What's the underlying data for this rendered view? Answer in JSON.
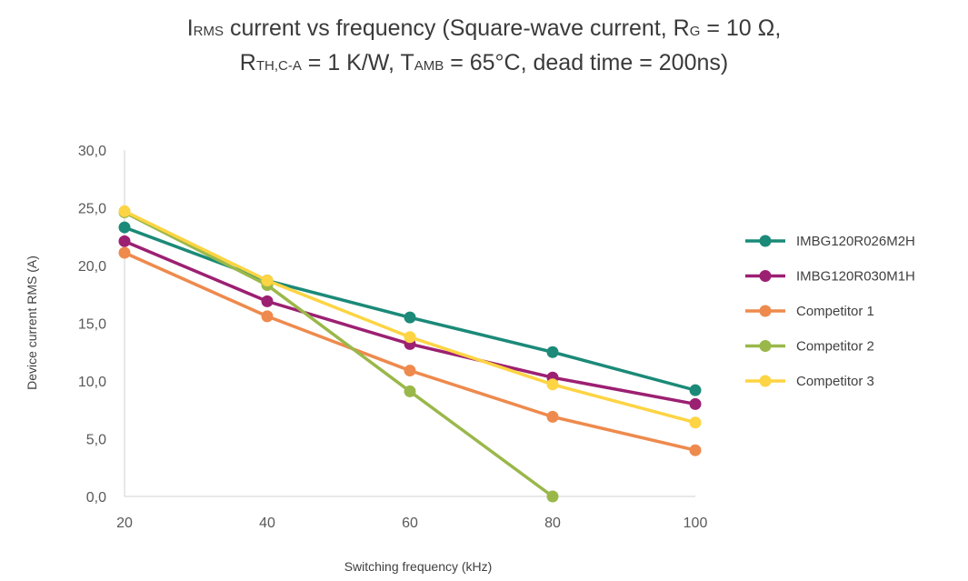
{
  "chart_data": {
    "type": "line",
    "title": {
      "line1_parts": [
        {
          "text": "I",
          "sub": false
        },
        {
          "text": "RMS",
          "sub": true
        },
        {
          "text": " current vs frequency (Square-wave current, R",
          "sub": false
        },
        {
          "text": "G",
          "sub": true
        },
        {
          "text": " = 10 Ω,",
          "sub": false
        }
      ],
      "line2_parts": [
        {
          "text": "R",
          "sub": false
        },
        {
          "text": "TH,C-A",
          "sub": true
        },
        {
          "text": " = 1 K/W, T",
          "sub": false
        },
        {
          "text": "AMB",
          "sub": true
        },
        {
          "text": " = 65°C, dead time = 200ns)",
          "sub": false
        }
      ]
    },
    "xlabel": "Switching frequency (kHz)",
    "ylabel": "Device current RMS (A)",
    "x": [
      20,
      40,
      60,
      80,
      100
    ],
    "x_tick_labels": [
      "20",
      "40",
      "60",
      "80",
      "100"
    ],
    "ylim": [
      0,
      30
    ],
    "y_ticks": [
      0,
      5,
      10,
      15,
      20,
      25,
      30
    ],
    "y_tick_labels": [
      "0,0",
      "5,0",
      "10,0",
      "15,0",
      "20,0",
      "25,0",
      "30,0"
    ],
    "grid": false,
    "legend_position": "right",
    "series": [
      {
        "name": "IMBG120R026M2H",
        "color": "#1b8a78",
        "values": [
          23.3,
          18.7,
          15.5,
          12.5,
          9.2
        ]
      },
      {
        "name": "IMBG120R030M1H",
        "color": "#9c2072",
        "values": [
          22.1,
          16.9,
          13.2,
          10.3,
          8.0
        ]
      },
      {
        "name": "Competitor 1",
        "color": "#ee8a4d",
        "values": [
          21.1,
          15.6,
          10.9,
          6.9,
          4.0
        ]
      },
      {
        "name": "Competitor 2",
        "color": "#9ab84a",
        "values": [
          24.6,
          18.3,
          9.1,
          0.0,
          null
        ]
      },
      {
        "name": "Competitor 3",
        "color": "#fdd443",
        "values": [
          24.7,
          18.7,
          13.8,
          9.7,
          6.4
        ]
      }
    ]
  }
}
